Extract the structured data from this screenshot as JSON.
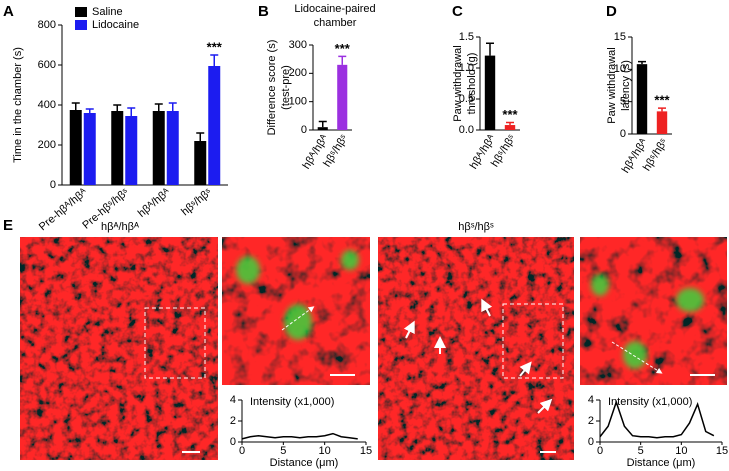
{
  "chart_data": [
    {
      "type": "bar",
      "panel": "A",
      "ylabel": [
        "Time in the chamber (s)"
      ],
      "categories": [
        "Pre-hβᴬ/hβᴬ",
        "Pre-hβˢ/hβˢ",
        "hβᴬ/hβᴬ",
        "hβˢ/hβˢ"
      ],
      "series": [
        {
          "name": "Saline",
          "color": "#000000",
          "values": [
            375,
            370,
            370,
            220
          ],
          "errors": [
            35,
            30,
            35,
            40
          ],
          "annotations": [
            null,
            null,
            null,
            null
          ]
        },
        {
          "name": "Lidocaine",
          "color": "#1c1cf0",
          "values": [
            360,
            345,
            370,
            595
          ],
          "errors": [
            20,
            40,
            40,
            55
          ],
          "annotations": [
            null,
            null,
            null,
            "***"
          ]
        }
      ],
      "ylim": [
        0,
        800
      ],
      "yticks": [
        0,
        200,
        400,
        600,
        800
      ],
      "legend": "top-left"
    },
    {
      "type": "bar",
      "panel": "B",
      "title": [
        "Lidocaine-paired",
        "chamber"
      ],
      "ylabel": [
        "Difference score (s)",
        "(test-pre)"
      ],
      "categories": [
        "hβᴬ/hβᴬ",
        "hβˢ/hβˢ"
      ],
      "values": [
        10,
        230
      ],
      "errors": [
        20,
        30
      ],
      "colors": [
        "#000000",
        "#9b30e0"
      ],
      "annotations": [
        null,
        "***"
      ],
      "ylim": [
        0,
        300
      ],
      "yticks": [
        0,
        100,
        200,
        300
      ]
    },
    {
      "type": "bar",
      "panel": "C",
      "ylabel": [
        "Paw withdrawal",
        "threshold (g)"
      ],
      "categories": [
        "hβᴬ/hβᴬ",
        "hβˢ/hβˢ"
      ],
      "values": [
        1.2,
        0.08
      ],
      "errors": [
        0.2,
        0.04
      ],
      "colors": [
        "#000000",
        "#ee2222"
      ],
      "annotations": [
        null,
        "***"
      ],
      "ylim": [
        0,
        1.5
      ],
      "yticks": [
        {
          "value": 0,
          "label": "0.0"
        },
        0.5,
        {
          "value": 1,
          "label": "1.0"
        },
        1.5
      ]
    },
    {
      "type": "bar",
      "panel": "D",
      "ylabel": [
        "Paw withdrawal",
        "latency (s)"
      ],
      "categories": [
        "hβᴬ/hβᴬ",
        "hβˢ/hβˢ"
      ],
      "values": [
        10.8,
        3.5
      ],
      "errors": [
        0.4,
        0.5
      ],
      "colors": [
        "#000000",
        "#ee2222"
      ],
      "annotations": [
        null,
        "***"
      ],
      "ylim": [
        0,
        15
      ],
      "yticks": [
        0,
        5,
        10,
        15
      ]
    },
    {
      "type": "line",
      "title": "Intensity (x1,000)",
      "xlabel": "Distance (μm)",
      "x": [
        0,
        1,
        2,
        3,
        4,
        5,
        6,
        7,
        8,
        9,
        10,
        11,
        12,
        13,
        14
      ],
      "series": [
        {
          "color": "#000000",
          "values": [
            0.3,
            0.5,
            0.6,
            0.5,
            0.4,
            0.5,
            0.5,
            0.4,
            0.5,
            0.5,
            0.6,
            0.8,
            0.5,
            0.4,
            0.3
          ]
        }
      ],
      "xlim": [
        0,
        15
      ],
      "xticks": [
        0,
        5,
        10,
        15
      ],
      "ylim": [
        0,
        4
      ],
      "yticks": [
        0,
        2,
        4
      ]
    },
    {
      "type": "line",
      "title": "Intensity (x1,000)",
      "xlabel": "Distance (μm)",
      "x": [
        0,
        1,
        2,
        3,
        4,
        5,
        6,
        7,
        8,
        9,
        10,
        11,
        12,
        13,
        14
      ],
      "series": [
        {
          "color": "#000000",
          "values": [
            0.5,
            1.5,
            3.8,
            1.5,
            0.6,
            0.5,
            0.5,
            0.4,
            0.5,
            0.5,
            0.7,
            1.8,
            3.6,
            1.0,
            0.6
          ]
        }
      ],
      "xlim": [
        0,
        15
      ],
      "xticks": [
        0,
        5,
        10,
        15
      ],
      "ylim": [
        0,
        4
      ],
      "yticks": [
        0,
        2,
        4
      ]
    }
  ],
  "panel_e": {
    "letter": "E",
    "labels": [
      "hβᴬ/hβᴬ",
      "hβˢ/hβˢ"
    ]
  }
}
